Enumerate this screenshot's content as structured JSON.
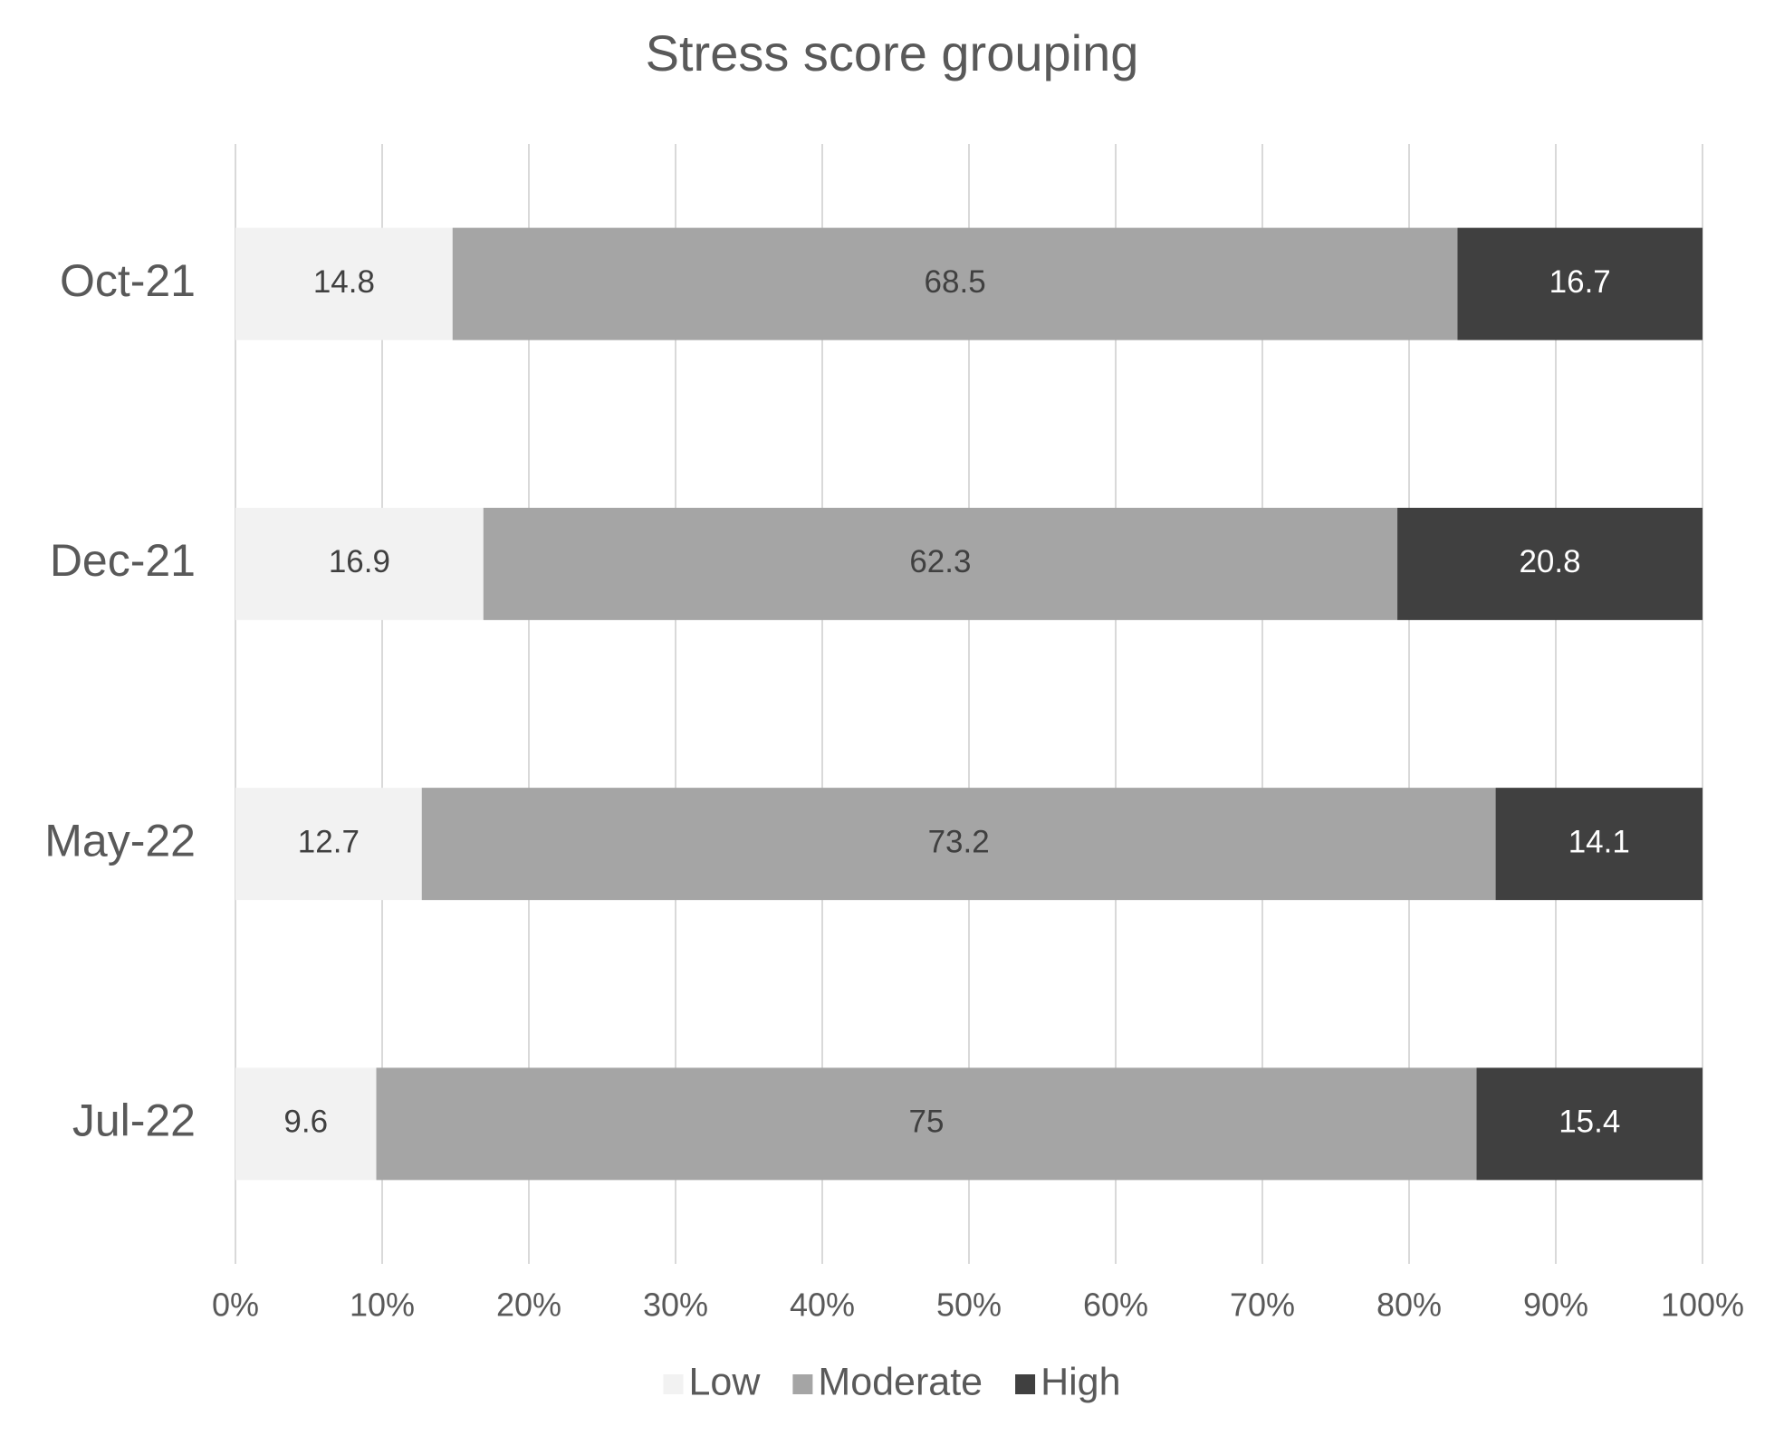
{
  "chart_data": {
    "type": "bar",
    "orientation": "horizontal",
    "stacked": true,
    "title": "Stress score grouping",
    "categories": [
      "Oct-21",
      "Dec-21",
      "May-22",
      "Jul-22"
    ],
    "series": [
      {
        "name": "Low",
        "color": "#f2f2f2",
        "values": [
          14.8,
          16.9,
          12.7,
          9.6
        ]
      },
      {
        "name": "Moderate",
        "color": "#a5a5a5",
        "values": [
          68.5,
          62.3,
          73.2,
          75
        ]
      },
      {
        "name": "High",
        "color": "#404040",
        "values": [
          16.7,
          20.8,
          14.1,
          15.4
        ]
      }
    ],
    "xlim": [
      0,
      100
    ],
    "xticks": [
      {
        "value": 0,
        "label": "0%"
      },
      {
        "value": 10,
        "label": "10%"
      },
      {
        "value": 20,
        "label": "20%"
      },
      {
        "value": 30,
        "label": "30%"
      },
      {
        "value": 40,
        "label": "40%"
      },
      {
        "value": 50,
        "label": "50%"
      },
      {
        "value": 60,
        "label": "60%"
      },
      {
        "value": 70,
        "label": "70%"
      },
      {
        "value": 80,
        "label": "80%"
      },
      {
        "value": 90,
        "label": "90%"
      },
      {
        "value": 100,
        "label": "100%"
      }
    ],
    "grid": true,
    "legend": "bottom"
  }
}
